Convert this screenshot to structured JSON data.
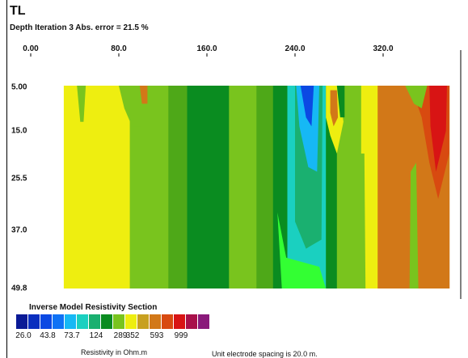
{
  "panel_label": "TL",
  "chart_data": {
    "type": "heatmap",
    "title": "Depth  Iteration 3 Abs. error = 21.5 %",
    "x_ticks": [
      "0.00",
      "80.0",
      "160.0",
      "240.0",
      "320.0"
    ],
    "x_tick_values": [
      0,
      80,
      160,
      240,
      320
    ],
    "xlim": [
      0,
      380
    ],
    "y_ticks": [
      "5.00",
      "15.0",
      "25.5",
      "37.0",
      "49.8"
    ],
    "y_tick_values": [
      5.0,
      15.0,
      25.5,
      37.0,
      49.8
    ],
    "ylim": [
      5.0,
      49.8
    ],
    "x_data_range": [
      30,
      380
    ],
    "colorbar": {
      "title": "Inverse Model Resistivity Section",
      "colors": [
        "#0a1a96",
        "#0a2fbf",
        "#0b49e3",
        "#0f72f5",
        "#16b8f5",
        "#1ad0c0",
        "#1ab070",
        "#0a8c20",
        "#79c41e",
        "#eeee10",
        "#c8a020",
        "#d27818",
        "#d84a10",
        "#d81414",
        "#a8104a",
        "#8a1a7a"
      ],
      "labels": [
        "26.0",
        "43.8",
        "73.7",
        "124",
        "289",
        "352",
        "593",
        "999"
      ],
      "label_positions": [
        0,
        2,
        4,
        6,
        8,
        9,
        11,
        13
      ],
      "unit": "Resistivity in Ohm.m"
    },
    "bands": [
      {
        "x0": 30,
        "x1": 35,
        "color": "#eeee10"
      },
      {
        "x0": 35,
        "x1": 90,
        "color": "#eeee10"
      },
      {
        "x0": 90,
        "x1": 125,
        "color": "#79c41e"
      },
      {
        "x0": 125,
        "x1": 142,
        "color": "#4ea818"
      },
      {
        "x0": 142,
        "x1": 180,
        "color": "#0a8c20"
      },
      {
        "x0": 180,
        "x1": 205,
        "color": "#79c41e"
      },
      {
        "x0": 205,
        "x1": 220,
        "color": "#4ea818"
      },
      {
        "x0": 220,
        "x1": 233,
        "color": "#0a8c20"
      },
      {
        "x0": 233,
        "x1": 268,
        "color": "#1ad0c0"
      },
      {
        "x0": 268,
        "x1": 278,
        "color": "#0a8c20"
      },
      {
        "x0": 278,
        "x1": 300,
        "color": "#79c41e"
      },
      {
        "x0": 300,
        "x1": 315,
        "color": "#eeee10"
      },
      {
        "x0": 315,
        "x1": 380,
        "color": "#d27818"
      }
    ],
    "anomalies": [
      {
        "color": "#1ab070",
        "pts": [
          [
            240,
            5
          ],
          [
            265,
            5
          ],
          [
            264,
            39
          ],
          [
            250,
            41
          ],
          [
            240,
            35
          ]
        ]
      },
      {
        "color": "#16b8f5",
        "pts": [
          [
            241,
            5
          ],
          [
            262,
            5
          ],
          [
            260,
            24
          ],
          [
            252,
            23
          ],
          [
            244,
            14
          ]
        ]
      },
      {
        "color": "#0b49e3",
        "pts": [
          [
            245,
            5
          ],
          [
            257,
            5
          ],
          [
            255,
            14
          ],
          [
            250,
            12
          ]
        ]
      },
      {
        "color": "#33ff33",
        "pts": [
          [
            224,
            33
          ],
          [
            232,
            43
          ],
          [
            262,
            45
          ],
          [
            268,
            49.8
          ],
          [
            228,
            49.8
          ]
        ]
      },
      {
        "color": "#d84a10",
        "pts": [
          [
            345,
            5
          ],
          [
            380,
            5
          ],
          [
            380,
            20
          ],
          [
            370,
            30
          ],
          [
            362,
            22
          ],
          [
            355,
            12
          ]
        ]
      },
      {
        "color": "#d81414",
        "pts": [
          [
            362,
            5
          ],
          [
            378,
            5
          ],
          [
            377,
            15
          ],
          [
            368,
            24
          ],
          [
            363,
            14
          ]
        ]
      },
      {
        "color": "#79c41e",
        "pts": [
          [
            340,
            5
          ],
          [
            360,
            5
          ],
          [
            355,
            10
          ],
          [
            348,
            9
          ]
        ]
      },
      {
        "color": "#eeee10",
        "pts": [
          [
            268,
            5
          ],
          [
            280,
            5
          ],
          [
            284,
            13
          ],
          [
            278,
            20
          ],
          [
            272,
            16
          ],
          [
            268,
            12
          ]
        ]
      },
      {
        "color": "#d27818",
        "pts": [
          [
            272,
            6
          ],
          [
            278,
            6
          ],
          [
            279,
            12
          ],
          [
            275,
            14
          ],
          [
            272,
            11
          ]
        ]
      },
      {
        "color": "#0a8c20",
        "pts": [
          [
            278,
            5
          ],
          [
            285,
            5
          ],
          [
            285,
            12
          ],
          [
            281,
            12
          ]
        ]
      },
      {
        "color": "#79c41e",
        "pts": [
          [
            42,
            5
          ],
          [
            50,
            5
          ],
          [
            48,
            13
          ],
          [
            45,
            13
          ]
        ]
      },
      {
        "color": "#79c41e",
        "pts": [
          [
            80,
            5
          ],
          [
            98,
            5
          ],
          [
            100,
            10
          ],
          [
            100,
            14
          ],
          [
            92,
            14
          ],
          [
            85,
            10
          ]
        ]
      },
      {
        "color": "#d27818",
        "pts": [
          [
            99,
            5
          ],
          [
            106,
            5
          ],
          [
            106,
            9
          ],
          [
            101,
            9
          ]
        ]
      },
      {
        "color": "#79c41e",
        "pts": [
          [
            298,
            20
          ],
          [
            303,
            20
          ],
          [
            304,
            49.8
          ],
          [
            298,
            49.8
          ]
        ]
      },
      {
        "color": "#79c41e",
        "pts": [
          [
            345,
            24
          ],
          [
            350,
            22
          ],
          [
            352,
            49.8
          ],
          [
            344,
            49.8
          ]
        ]
      }
    ]
  },
  "note": "Unit electrode spacing is 20.0 m."
}
